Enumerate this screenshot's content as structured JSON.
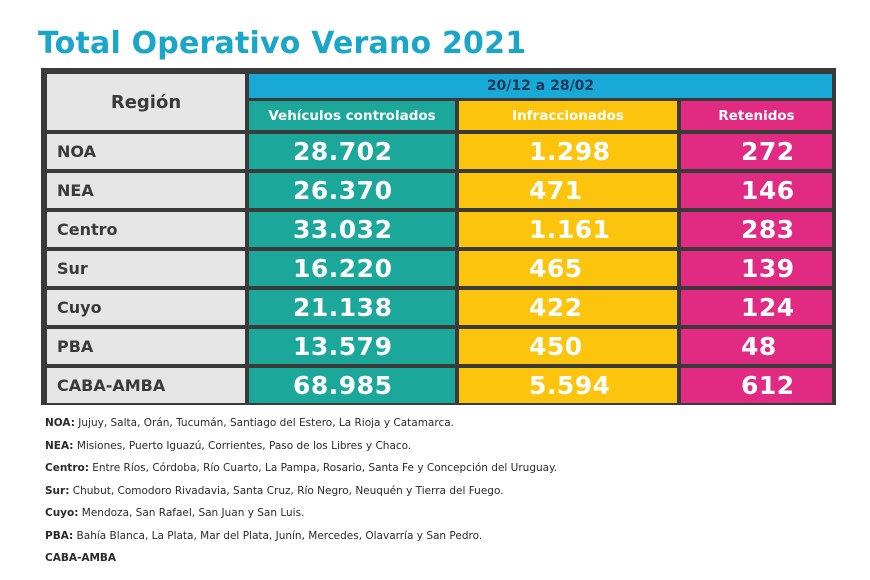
{
  "title": "Total Operativo Verano 2021",
  "table": {
    "region_header": "Región",
    "period": "20/12 a 28/02",
    "columns": [
      "Vehículos controlados",
      "Infraccionados",
      "Retenidos"
    ],
    "rows": [
      {
        "region": "NOA",
        "vehiculos": "28.702",
        "infraccionados": "1.298",
        "retenidos": "272"
      },
      {
        "region": "NEA",
        "vehiculos": "26.370",
        "infraccionados": "471",
        "retenidos": "146"
      },
      {
        "region": "Centro",
        "vehiculos": "33.032",
        "infraccionados": "1.161",
        "retenidos": "283"
      },
      {
        "region": "Sur",
        "vehiculos": "16.220",
        "infraccionados": "465",
        "retenidos": "139"
      },
      {
        "region": "Cuyo",
        "vehiculos": "21.138",
        "infraccionados": "422",
        "retenidos": "124"
      },
      {
        "region": "PBA",
        "vehiculos": "13.579",
        "infraccionados": "450",
        "retenidos": "48"
      },
      {
        "region": "CABA-AMBA",
        "vehiculos": "68.985",
        "infraccionados": "5.594",
        "retenidos": "612"
      }
    ]
  },
  "notes": [
    {
      "code": "NOA:",
      "text": " Jujuy, Salta, Orán, Tucumán, Santiago del Estero, La Rioja y Catamarca."
    },
    {
      "code": "NEA:",
      "text": " Misiones, Puerto Iguazú, Corrientes, Paso de los Libres y Chaco."
    },
    {
      "code": "Centro:",
      "text": " Entre Ríos, Córdoba, Río Cuarto, La Pampa, Rosario, Santa Fe y Concepción del Uruguay."
    },
    {
      "code": "Sur:",
      "text": " Chubut, Comodoro Rivadavia, Santa Cruz, Río Negro, Neuquén y Tierra del Fuego."
    },
    {
      "code": "Cuyo:",
      "text": " Mendoza, San Rafael, San Juan y San Luis."
    },
    {
      "code": "PBA:",
      "text": " Bahía Blanca, La Plata, Mar del Plata, Junín, Mercedes, Olavarría y San Pedro."
    },
    {
      "code": "CABA-AMBA",
      "text": ""
    }
  ],
  "colors": {
    "title": "#1aa6c8",
    "header_blue": "#18a9d6",
    "vehiculos": "#1ba89a",
    "infraccionados": "#fdc40e",
    "retenidos": "#e12a82",
    "region_bg": "#e6e6e6",
    "grid": "#3a3a3a"
  }
}
